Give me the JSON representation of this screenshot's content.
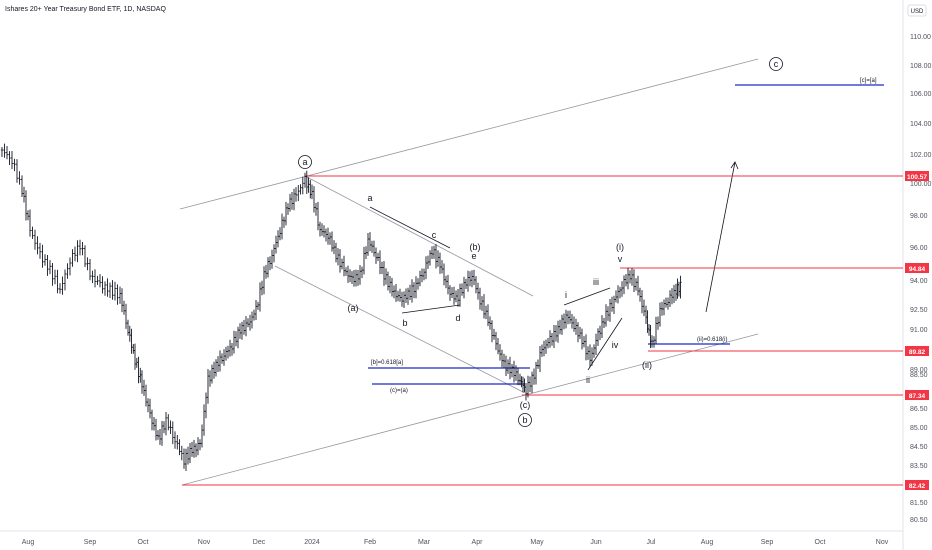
{
  "title": "Ishares 20+ Year Treasury Bond ETF, 1D, NASDAQ",
  "currency": "USD",
  "chart_data": {
    "type": "bar",
    "ylim": [
      80.0,
      111.0
    ],
    "y_ticks": [
      "110.00",
      "108.00",
      "106.00",
      "104.00",
      "102.00",
      "100.00",
      "98.00",
      "96.00",
      "94.00",
      "92.50",
      "91.00",
      "89.00",
      "88.50",
      "86.50",
      "85.00",
      "84.50",
      "83.50",
      "81.50",
      "80.50"
    ],
    "x_ticks": [
      "Aug",
      "Sep",
      "Oct",
      "Nov",
      "Dec",
      "2024",
      "Feb",
      "Mar",
      "Apr",
      "May",
      "Jun",
      "Jul",
      "Aug",
      "Sep",
      "Oct",
      "Nov"
    ],
    "price_levels": [
      {
        "label": "100.57",
        "value": 100.57
      },
      {
        "label": "94.84",
        "value": 94.84
      },
      {
        "label": "89.82",
        "value": 89.82
      },
      {
        "label": "87.34",
        "value": 87.34
      },
      {
        "label": "82.42",
        "value": 82.42
      }
    ],
    "wave_labels": [
      {
        "text": "a",
        "circled": true
      },
      {
        "text": "b",
        "circled": true
      },
      {
        "text": "c",
        "circled": true
      },
      {
        "text": "(a)",
        "circled": false
      },
      {
        "text": "(b)",
        "circled": false
      },
      {
        "text": "(c)",
        "circled": false
      },
      {
        "text": "a",
        "circled": false
      },
      {
        "text": "b",
        "circled": false
      },
      {
        "text": "c",
        "circled": false
      },
      {
        "text": "d",
        "circled": false
      },
      {
        "text": "e",
        "circled": false
      },
      {
        "text": "(i)",
        "circled": false
      },
      {
        "text": "(ii)",
        "circled": false
      },
      {
        "text": "i",
        "circled": false
      },
      {
        "text": "ii",
        "circled": false
      },
      {
        "text": "iii",
        "circled": false
      },
      {
        "text": "iv",
        "circled": false
      },
      {
        "text": "v",
        "circled": false
      }
    ],
    "fib_labels": [
      {
        "text": "[b]=0.618[a]"
      },
      {
        "text": "(c)=(a)"
      },
      {
        "text": "(ii)=0.618(i)"
      },
      {
        "text": "[c]=[a]"
      }
    ],
    "colors": {
      "bar": "#131722",
      "level_line": "#f23645",
      "fib_line": "#1e2bc2",
      "channel": "#9598a1",
      "grid": "#e0e3eb"
    }
  }
}
